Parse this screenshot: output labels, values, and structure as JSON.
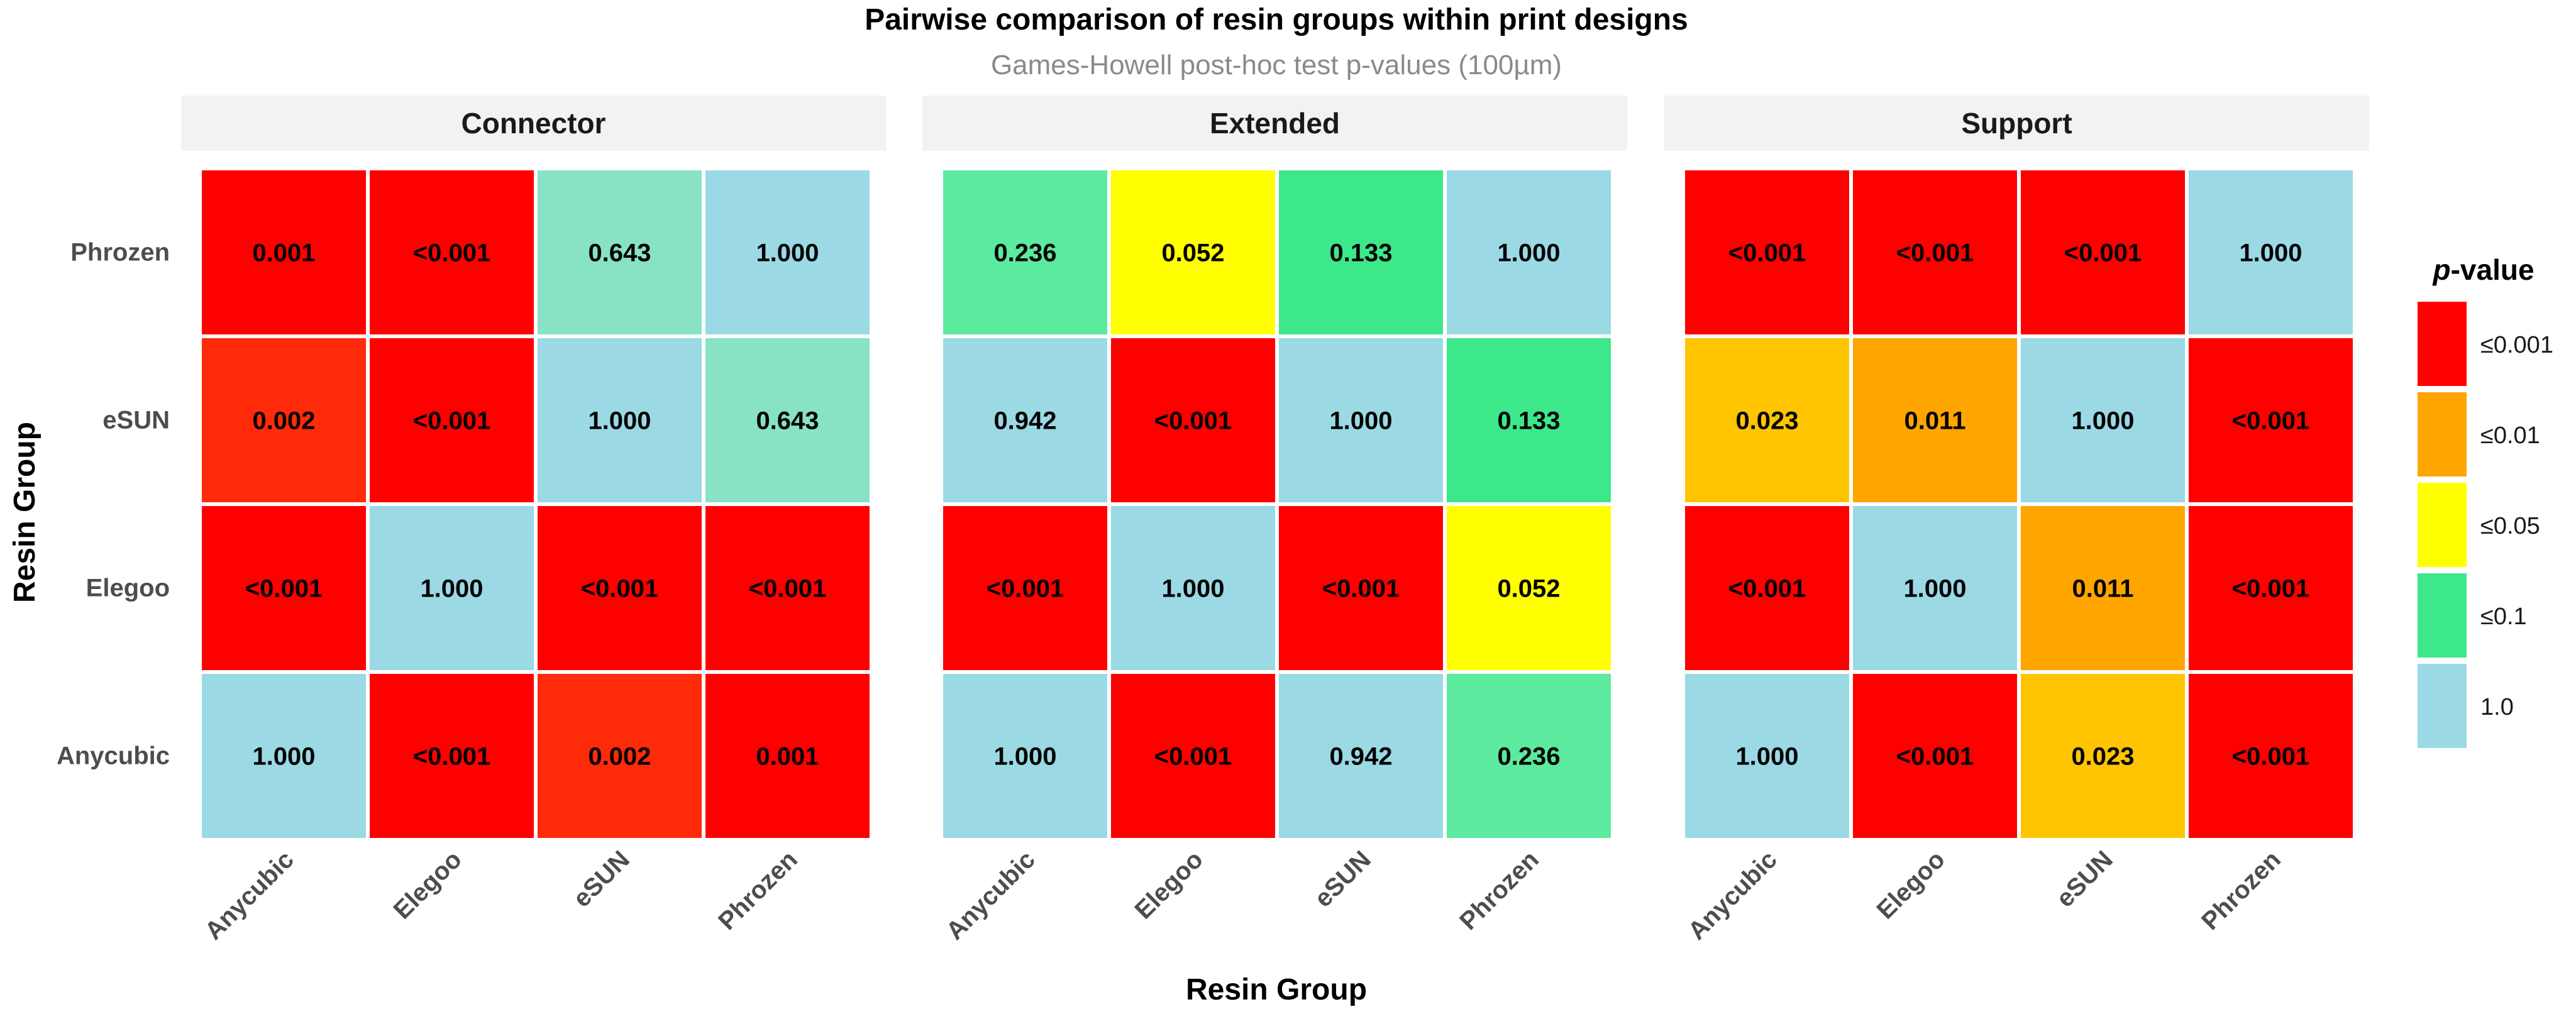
{
  "chart_data": {
    "type": "heatmap",
    "title": "Pairwise comparison of resin groups within print designs",
    "subtitle": "Games-Howell post-hoc test p-values (100µm)",
    "xlabel": "Resin Group",
    "ylabel": "Resin Group",
    "x_categories": [
      "Anycubic",
      "Elegoo",
      "eSUN",
      "Phrozen"
    ],
    "y_categories_top_to_bottom": [
      "Phrozen",
      "eSUN",
      "Elegoo",
      "Anycubic"
    ],
    "legend": {
      "title_prefix": "p",
      "title_suffix": "-value",
      "placement": "right",
      "items": [
        {
          "label": "≤0.001",
          "color": "#FF0000"
        },
        {
          "label": "≤0.01",
          "color": "#FFA500"
        },
        {
          "label": "≤0.05",
          "color": "#FFFF00"
        },
        {
          "label": "≤0.1",
          "color": "#3DE88A"
        },
        {
          "label": "1.0",
          "color": "#9BD9E5"
        }
      ]
    },
    "panels": [
      {
        "name": "Connector",
        "cells": [
          [
            {
              "text": "0.001",
              "color": "#FF0000"
            },
            {
              "text": "<0.001",
              "color": "#FF0000"
            },
            {
              "text": "0.643",
              "color": "#88E2C6"
            },
            {
              "text": "1.000",
              "color": "#9BD9E5"
            }
          ],
          [
            {
              "text": "0.002",
              "color": "#FF2A0A"
            },
            {
              "text": "<0.001",
              "color": "#FF0000"
            },
            {
              "text": "1.000",
              "color": "#9BD9E5"
            },
            {
              "text": "0.643",
              "color": "#88E2C6"
            }
          ],
          [
            {
              "text": "<0.001",
              "color": "#FF0000"
            },
            {
              "text": "1.000",
              "color": "#9BD9E5"
            },
            {
              "text": "<0.001",
              "color": "#FF0000"
            },
            {
              "text": "<0.001",
              "color": "#FF0000"
            }
          ],
          [
            {
              "text": "1.000",
              "color": "#9BD9E5"
            },
            {
              "text": "<0.001",
              "color": "#FF0000"
            },
            {
              "text": "0.002",
              "color": "#FF2A0A"
            },
            {
              "text": "0.001",
              "color": "#FF0000"
            }
          ]
        ]
      },
      {
        "name": "Extended",
        "cells": [
          [
            {
              "text": "0.236",
              "color": "#5BEA9E"
            },
            {
              "text": "0.052",
              "color": "#FFFF00"
            },
            {
              "text": "0.133",
              "color": "#3DE88A"
            },
            {
              "text": "1.000",
              "color": "#9BD9E5"
            }
          ],
          [
            {
              "text": "0.942",
              "color": "#9BD9E5"
            },
            {
              "text": "<0.001",
              "color": "#FF0000"
            },
            {
              "text": "1.000",
              "color": "#9BD9E5"
            },
            {
              "text": "0.133",
              "color": "#3DE88A"
            }
          ],
          [
            {
              "text": "<0.001",
              "color": "#FF0000"
            },
            {
              "text": "1.000",
              "color": "#9BD9E5"
            },
            {
              "text": "<0.001",
              "color": "#FF0000"
            },
            {
              "text": "0.052",
              "color": "#FFFF00"
            }
          ],
          [
            {
              "text": "1.000",
              "color": "#9BD9E5"
            },
            {
              "text": "<0.001",
              "color": "#FF0000"
            },
            {
              "text": "0.942",
              "color": "#9BD9E5"
            },
            {
              "text": "0.236",
              "color": "#5BEA9E"
            }
          ]
        ]
      },
      {
        "name": "Support",
        "cells": [
          [
            {
              "text": "<0.001",
              "color": "#FF0000"
            },
            {
              "text": "<0.001",
              "color": "#FF0000"
            },
            {
              "text": "<0.001",
              "color": "#FF0000"
            },
            {
              "text": "1.000",
              "color": "#9BD9E5"
            }
          ],
          [
            {
              "text": "0.023",
              "color": "#FFC500"
            },
            {
              "text": "0.011",
              "color": "#FFA500"
            },
            {
              "text": "1.000",
              "color": "#9BD9E5"
            },
            {
              "text": "<0.001",
              "color": "#FF0000"
            }
          ],
          [
            {
              "text": "<0.001",
              "color": "#FF0000"
            },
            {
              "text": "1.000",
              "color": "#9BD9E5"
            },
            {
              "text": "0.011",
              "color": "#FFA500"
            },
            {
              "text": "<0.001",
              "color": "#FF0000"
            }
          ],
          [
            {
              "text": "1.000",
              "color": "#9BD9E5"
            },
            {
              "text": "<0.001",
              "color": "#FF0000"
            },
            {
              "text": "0.023",
              "color": "#FFC500"
            },
            {
              "text": "<0.001",
              "color": "#FF0000"
            }
          ]
        ]
      }
    ]
  }
}
